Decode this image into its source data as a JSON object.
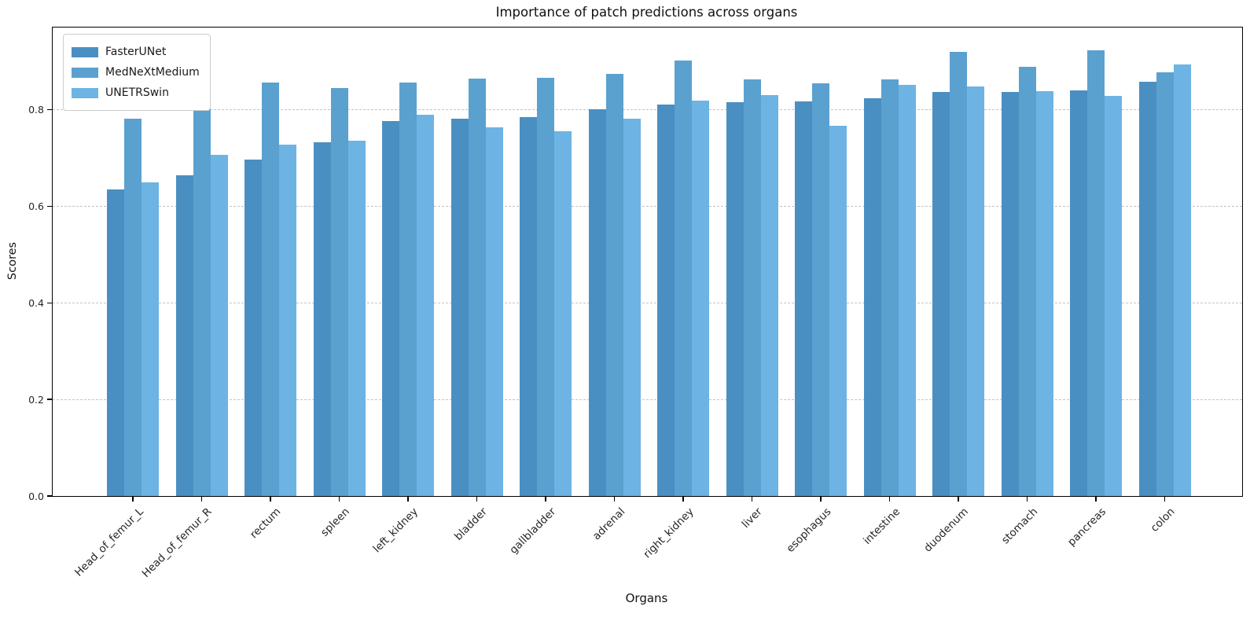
{
  "chart_data": {
    "type": "bar",
    "title": "Importance of patch predictions across organs",
    "xlabel": "Organs",
    "ylabel": "Scores",
    "categories": [
      "Head_of_femur_L",
      "Head_of_femur_R",
      "rectum",
      "spleen",
      "left_kidney",
      "bladder",
      "gallbladder",
      "adrenal",
      "right_kidney",
      "liver",
      "esophagus",
      "intestine",
      "duodenum",
      "stomach",
      "pancreas",
      "colon"
    ],
    "series": [
      {
        "name": "FasterUNet",
        "color": "#4a8fc2",
        "values": [
          0.635,
          0.664,
          0.696,
          0.733,
          0.776,
          0.781,
          0.784,
          0.8,
          0.811,
          0.816,
          0.817,
          0.823,
          0.836,
          0.836,
          0.84,
          0.857
        ]
      },
      {
        "name": "MedNeXtMedium",
        "color": "#5aa1d0",
        "values": [
          0.782,
          0.806,
          0.856,
          0.844,
          0.856,
          0.865,
          0.866,
          0.874,
          0.902,
          0.863,
          0.855,
          0.862,
          0.92,
          0.889,
          0.922,
          0.878
        ]
      },
      {
        "name": "UNETRSwin",
        "color": "#6db3e3",
        "values": [
          0.65,
          0.707,
          0.727,
          0.736,
          0.79,
          0.764,
          0.755,
          0.782,
          0.818,
          0.83,
          0.767,
          0.852,
          0.848,
          0.838,
          0.829,
          0.894
        ]
      }
    ],
    "ylim": [
      0,
      0.97
    ],
    "ytick_labels": [
      "0.0",
      "0.2",
      "0.4",
      "0.6",
      "0.8"
    ],
    "ytick_values": [
      0,
      0.2,
      0.4,
      0.6,
      0.8
    ],
    "grid": "horizontal-dashed",
    "grid_color": "#c3c3c3",
    "legend_position": "upper-left",
    "xtick_rotation_deg": 45
  }
}
